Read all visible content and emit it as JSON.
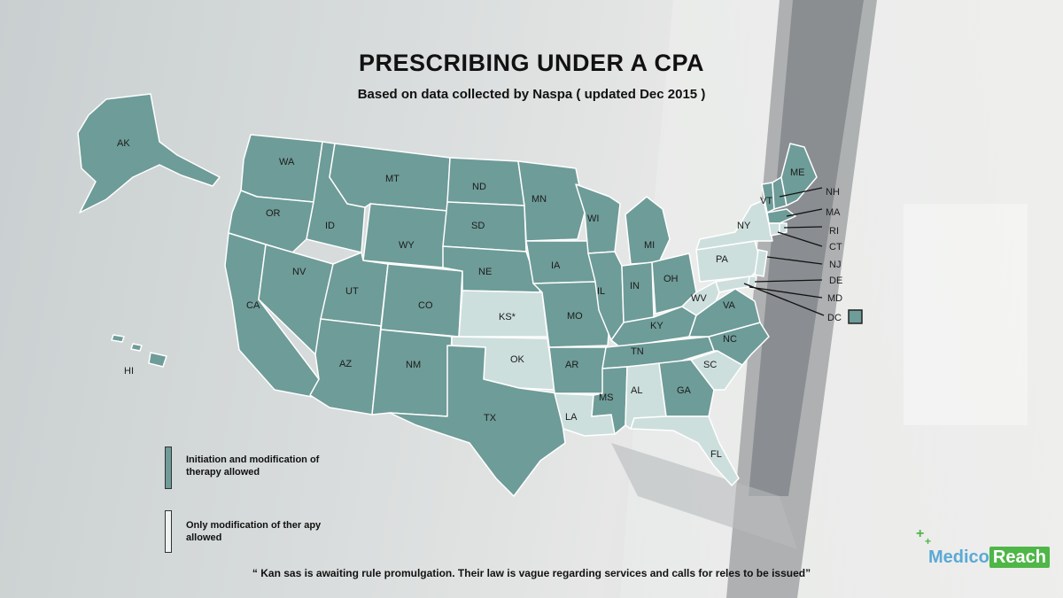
{
  "title": "PRESCRIBING UNDER A CPA",
  "subtitle": "Based on data collected by Naspa ( updated Dec 2015 )",
  "colors": {
    "full_authority": "#6e9c98",
    "modification_only": "#cddfdd",
    "border": "#ffffff"
  },
  "legend": {
    "full_label": "Initiation and modification of therapy allowed",
    "partial_label": "Only modification of ther apy allowed"
  },
  "footnote": "“ Kan sas  is awaiting rule promulgation. Their law is vague regarding services and calls for reles to be issued”",
  "logo": {
    "part1": "Medico",
    "part2": "Reach"
  },
  "states": {
    "AK": "AK",
    "HI": "HI",
    "WA": "WA",
    "OR": "OR",
    "CA": "CA",
    "ID": "ID",
    "NV": "NV",
    "MT": "MT",
    "WY": "WY",
    "UT": "UT",
    "AZ": "AZ",
    "CO": "CO",
    "NM": "NM",
    "ND": "ND",
    "SD": "SD",
    "NE": "NE",
    "KS": "KS*",
    "OK": "OK",
    "TX": "TX",
    "MN": "MN",
    "IA": "IA",
    "MO": "MO",
    "AR": "AR",
    "LA": "LA",
    "WI": "WI",
    "IL": "IL",
    "MI": "MI",
    "IN": "IN",
    "OH": "OH",
    "KY": "KY",
    "TN": "TN",
    "MS": "MS",
    "AL": "AL",
    "GA": "GA",
    "FL": "FL",
    "SC": "SC",
    "NC": "NC",
    "VA": "VA",
    "WV": "WV",
    "PA": "PA",
    "NY": "NY",
    "VT": "VT",
    "ME": "ME",
    "NH": "NH",
    "MA": "MA",
    "RI": "RI",
    "CT": "CT",
    "NJ": "NJ",
    "DE": "DE",
    "MD": "MD",
    "DC": "DC"
  },
  "categories": {
    "modification_only": [
      "KS",
      "OK",
      "LA",
      "AL",
      "FL",
      "SC",
      "WV",
      "PA",
      "NY",
      "NJ",
      "DE",
      "MD",
      "CT",
      "RI"
    ],
    "full_authority": [
      "AK",
      "HI",
      "WA",
      "OR",
      "CA",
      "ID",
      "NV",
      "MT",
      "WY",
      "UT",
      "AZ",
      "CO",
      "NM",
      "ND",
      "SD",
      "NE",
      "TX",
      "MN",
      "IA",
      "MO",
      "AR",
      "WI",
      "IL",
      "MI",
      "IN",
      "OH",
      "KY",
      "TN",
      "MS",
      "GA",
      "NC",
      "VA",
      "VT",
      "ME",
      "NH",
      "MA",
      "DC"
    ]
  }
}
